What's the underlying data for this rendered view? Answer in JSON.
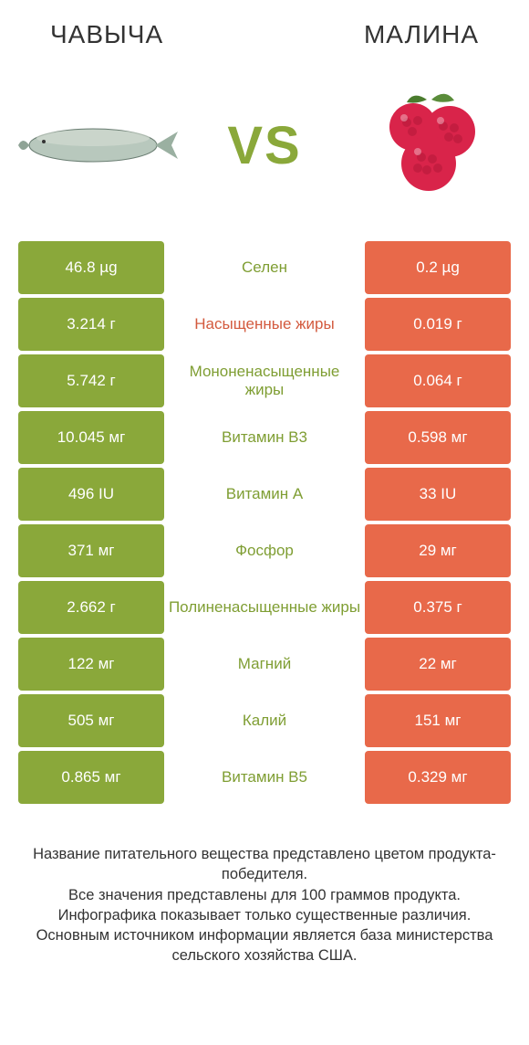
{
  "colors": {
    "left_bg": "#8aa83a",
    "right_bg": "#e8694a",
    "mid_green": "#7f9e33",
    "mid_red": "#d35a3e",
    "vs_color": "#8aa83a",
    "title_color": "#333333",
    "footnote_color": "#333333"
  },
  "fonts": {
    "title_size": 28,
    "vs_size": 58,
    "cell_size": 17,
    "footnote_size": 16.5
  },
  "header": {
    "left": "ЧАВЫЧА",
    "right": "МАЛИНА"
  },
  "vs": "VS",
  "rows": [
    {
      "left": "46.8 µg",
      "mid": "Селен",
      "right": "0.2 µg",
      "mid_color": "left"
    },
    {
      "left": "3.214 г",
      "mid": "Насыщенные жиры",
      "right": "0.019 г",
      "mid_color": "right"
    },
    {
      "left": "5.742 г",
      "mid": "Мононенасыщенные жиры",
      "right": "0.064 г",
      "mid_color": "left"
    },
    {
      "left": "10.045 мг",
      "mid": "Витамин B3",
      "right": "0.598 мг",
      "mid_color": "left"
    },
    {
      "left": "496 IU",
      "mid": "Витамин A",
      "right": "33 IU",
      "mid_color": "left"
    },
    {
      "left": "371 мг",
      "mid": "Фосфор",
      "right": "29 мг",
      "mid_color": "left"
    },
    {
      "left": "2.662 г",
      "mid": "Полиненасыщенные жиры",
      "right": "0.375 г",
      "mid_color": "left"
    },
    {
      "left": "122 мг",
      "mid": "Магний",
      "right": "22 мг",
      "mid_color": "left"
    },
    {
      "left": "505 мг",
      "mid": "Калий",
      "right": "151 мг",
      "mid_color": "left"
    },
    {
      "left": "0.865 мг",
      "mid": "Витамин B5",
      "right": "0.329 мг",
      "mid_color": "left"
    }
  ],
  "footnote": "Название питательного вещества представлено цветом продукта-победителя.\nВсе значения представлены для 100 граммов продукта.\nИнфографика показывает только существенные различия.\nОсновным источником информации является база министерства сельского хозяйства США."
}
